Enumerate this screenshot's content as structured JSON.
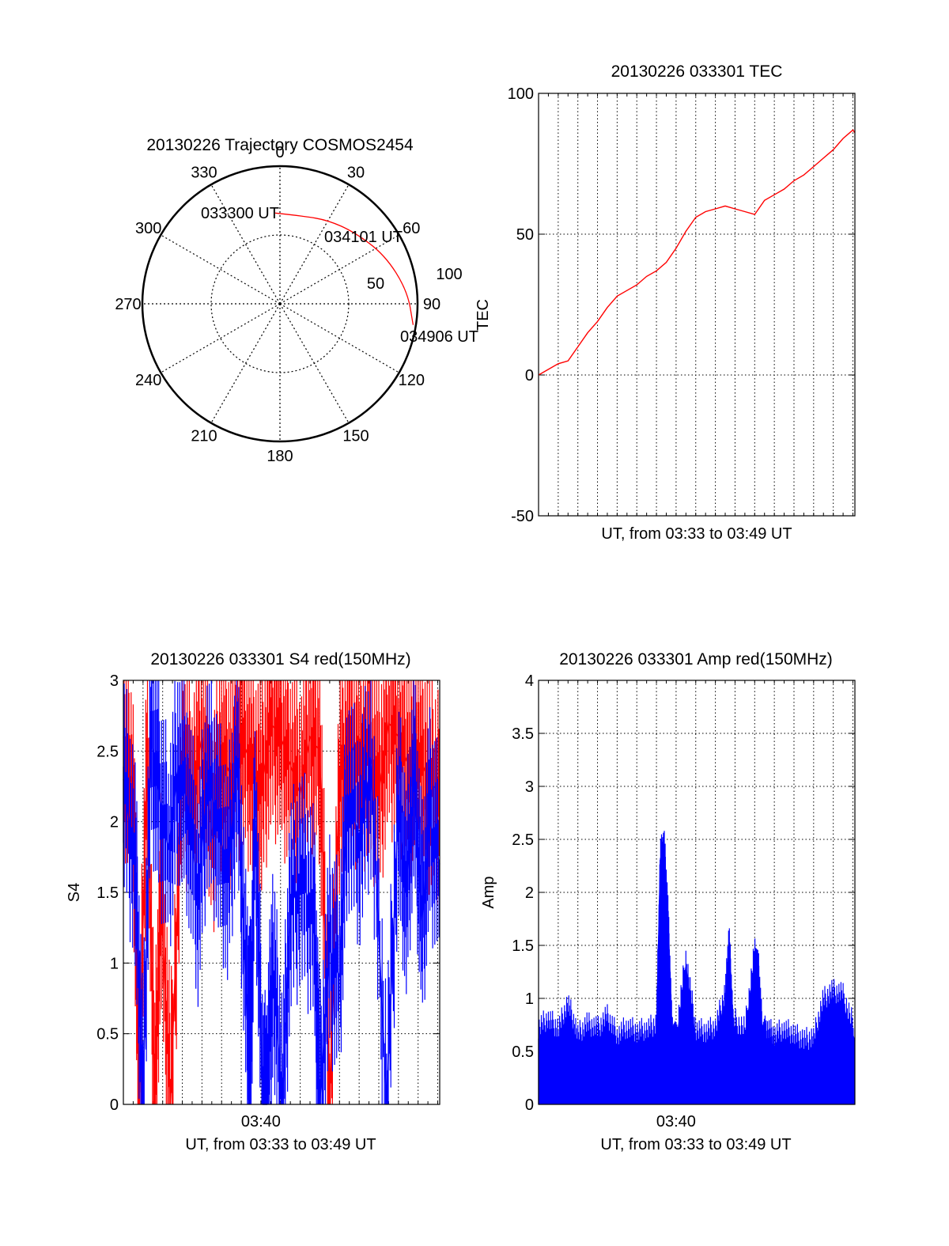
{
  "colors": {
    "red": "#ff0000",
    "blue": "#0000ff",
    "axis": "#000000",
    "grid": "#000000"
  },
  "chart_data": [
    {
      "type": "polar",
      "title": "20130226 Trajectory COSMOS2454",
      "ylabel": "TEC",
      "angle_labels": [
        "0",
        "30",
        "60",
        "90",
        "120",
        "150",
        "180",
        "210",
        "240",
        "270",
        "300",
        "330"
      ],
      "radial_labels": [
        "50",
        "100"
      ],
      "radial_range": [
        0,
        100
      ],
      "grid": true,
      "trajectory": {
        "color": "#ff0000",
        "points": [
          {
            "label": "033300 UT",
            "azimuth": 357,
            "radius": 66
          },
          {
            "azimuth": 15,
            "radius": 66
          },
          {
            "azimuth": 30,
            "radius": 70
          },
          {
            "label": "034101 UT",
            "azimuth": 46,
            "radius": 75
          },
          {
            "azimuth": 65,
            "radius": 84
          },
          {
            "azimuth": 84,
            "radius": 93
          },
          {
            "label": "034906 UT",
            "azimuth": 99,
            "radius": 98
          }
        ]
      }
    },
    {
      "type": "line",
      "title": "20130226 033301 TEC",
      "xlabel": "UT, from 03:33 to 03:49 UT",
      "ylabel": "",
      "xlim": [
        0,
        16.1
      ],
      "ylim": [
        -50,
        100
      ],
      "yticks": [
        -50,
        0,
        50,
        100
      ],
      "grid": true,
      "series": [
        {
          "color": "#ff0000",
          "x": [
            0,
            0.5,
            1,
            1.5,
            2,
            2.5,
            3,
            3.5,
            4,
            4.5,
            5,
            5.5,
            6,
            6.5,
            7,
            7.5,
            8,
            8.5,
            9,
            9.5,
            10,
            10.5,
            11,
            11.5,
            12,
            12.5,
            13,
            13.5,
            14,
            14.5,
            15,
            15.5,
            16,
            16.1
          ],
          "values": [
            0,
            2,
            4,
            5,
            10,
            15,
            19,
            24,
            28,
            30,
            32,
            35,
            37,
            40,
            45,
            51,
            56,
            58,
            59,
            60,
            59,
            58,
            57,
            62,
            64,
            66,
            69,
            71,
            74,
            77,
            80,
            84,
            87,
            86
          ]
        }
      ]
    },
    {
      "type": "line",
      "title": "20130226 033301 S4 red(150MHz)",
      "xlabel": "UT, from 03:33 to 03:49 UT",
      "ylabel": "S4",
      "xlim": [
        0,
        16.1
      ],
      "ylim": [
        0,
        3
      ],
      "yticks": [
        0,
        0.5,
        1,
        1.5,
        2,
        2.5,
        3
      ],
      "yticklabels": [
        "0",
        "0.5",
        "1",
        "1.5",
        "2",
        "2.5",
        "3"
      ],
      "xticklabels": [
        {
          "x": 7,
          "label": "03:40"
        }
      ],
      "grid": true,
      "series": [
        {
          "color": "#ff0000",
          "x": [
            0,
            0.5,
            0.8,
            1.2,
            1.6,
            1.9,
            2.4,
            3,
            3.5,
            4,
            4.5,
            5,
            5.5,
            6,
            6.5,
            7,
            7.5,
            8,
            8.5,
            9,
            9.5,
            10,
            10.5,
            11,
            11.5,
            12,
            12.5,
            13,
            13.5,
            14,
            14.5,
            15,
            15.5,
            16.1
          ],
          "values": [
            2.6,
            2.2,
            0,
            2.5,
            0,
            1.5,
            0,
            2.4,
            2.2,
            2.6,
            1.9,
            2.5,
            2.3,
            2.6,
            2.4,
            2.2,
            2.7,
            2.6,
            2.4,
            2.2,
            2.6,
            2.5,
            0,
            2.3,
            2.6,
            2.4,
            2.5,
            2.2,
            2.7,
            2.6,
            2.4,
            2.5,
            2.3,
            2.2
          ]
        },
        {
          "color": "#0000ff",
          "x": [
            0,
            0.6,
            1,
            1.4,
            1.8,
            2.3,
            2.8,
            3.3,
            3.8,
            4.3,
            4.8,
            5.3,
            5.8,
            6.3,
            6.5,
            6.7,
            7.1,
            7.3,
            7.6,
            8.1,
            8.5,
            9.1,
            9.7,
            10,
            10.5,
            11,
            11.4,
            12,
            12.6,
            13.4,
            14,
            14.4,
            14.8,
            15.2,
            15.6,
            16.1
          ],
          "values": [
            2.3,
            1.7,
            0,
            2.6,
            2.2,
            1.8,
            2.4,
            2.1,
            1.5,
            2.3,
            2.0,
            1.6,
            2.4,
            0.6,
            0.5,
            2.1,
            0,
            0,
            1.0,
            0,
            1.4,
            1.6,
            1.3,
            0,
            1.1,
            0.9,
            2.2,
            1.9,
            2.4,
            0,
            2.1,
            1.5,
            2.3,
            1.3,
            2.0,
            1.7
          ]
        }
      ]
    },
    {
      "type": "line",
      "title": "20130226 033301 Amp red(150MHz)",
      "xlabel": "UT, from 03:33 to 03:49 UT",
      "ylabel": "Amp",
      "xlim": [
        0,
        16.1
      ],
      "ylim": [
        0,
        4
      ],
      "yticks": [
        0,
        0.5,
        1,
        1.5,
        2,
        2.5,
        3,
        3.5,
        4
      ],
      "yticklabels": [
        "0",
        "0.5",
        "1",
        "1.5",
        "2",
        "2.5",
        "3",
        "3.5",
        "4"
      ],
      "xticklabels": [
        {
          "x": 7,
          "label": "03:40"
        }
      ],
      "grid": true,
      "series": [
        {
          "color": "#0000ff",
          "x": [
            0,
            0.5,
            1,
            1.5,
            2,
            2.5,
            3,
            3.5,
            4,
            4.5,
            5,
            5.5,
            6,
            6.2,
            6.4,
            6.6,
            6.8,
            7,
            7.5,
            8,
            8.5,
            9,
            9.5,
            9.7,
            9.9,
            10.5,
            11,
            11.2,
            11.4,
            11.6,
            12,
            12.5,
            13,
            13.5,
            14,
            14.5,
            15,
            15.5,
            16.1
          ],
          "values": [
            0.62,
            0.7,
            0.6,
            0.85,
            0.55,
            0.65,
            0.6,
            0.72,
            0.55,
            0.62,
            0.58,
            0.6,
            0.65,
            2.3,
            2.38,
            1.7,
            0.6,
            0.55,
            1.3,
            0.6,
            0.58,
            0.62,
            0.95,
            1.52,
            0.7,
            0.6,
            1.35,
            1.2,
            0.6,
            0.62,
            0.55,
            0.6,
            0.55,
            0.5,
            0.52,
            0.88,
            0.96,
            0.92,
            0.6
          ]
        }
      ]
    }
  ]
}
